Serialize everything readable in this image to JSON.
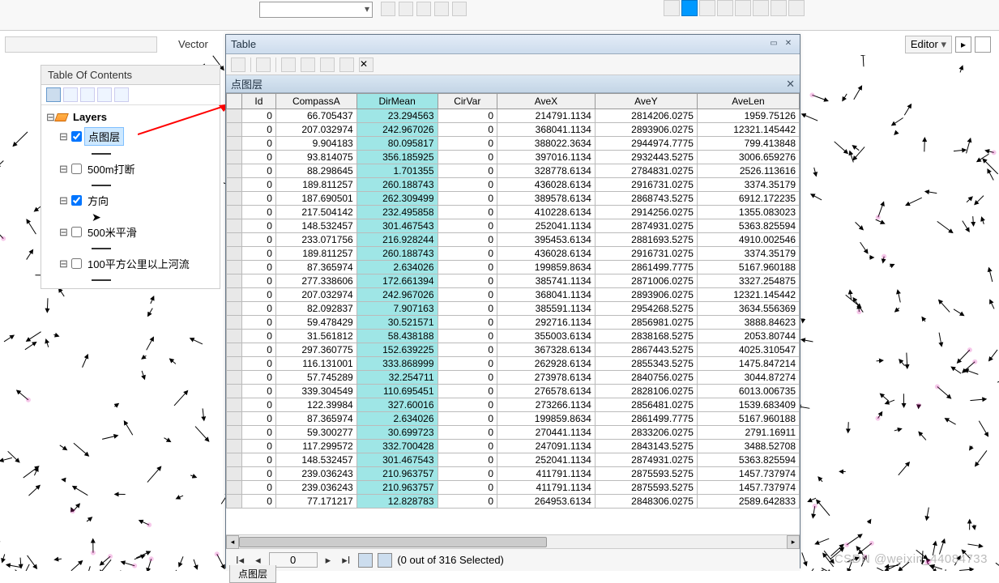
{
  "top": {
    "vector_label": "Vector",
    "editor_label": "Editor"
  },
  "toc": {
    "title": "Table Of Contents",
    "root": "Layers",
    "items": [
      {
        "label": "点图层",
        "checked": true,
        "selected": true,
        "symbol": "dash"
      },
      {
        "label": "500m打断",
        "checked": false,
        "selected": false,
        "symbol": "dash"
      },
      {
        "label": "方向",
        "checked": true,
        "selected": false,
        "symbol": "arrow"
      },
      {
        "label": "500米平滑",
        "checked": false,
        "selected": false,
        "symbol": "dash"
      },
      {
        "label": "100平方公里以上河流",
        "checked": false,
        "selected": false,
        "symbol": "dash"
      }
    ]
  },
  "table": {
    "window_title": "Table",
    "sub_title": "点图层",
    "columns": [
      "Id",
      "CompassA",
      "DirMean",
      "CirVar",
      "AveX",
      "AveY",
      "AveLen"
    ],
    "highlight_col_index": 2,
    "rows": [
      [
        "0",
        "66.705437",
        "23.294563",
        "0",
        "214791.1134",
        "2814206.0275",
        "1959.75126"
      ],
      [
        "0",
        "207.032974",
        "242.967026",
        "0",
        "368041.1134",
        "2893906.0275",
        "12321.145442"
      ],
      [
        "0",
        "9.904183",
        "80.095817",
        "0",
        "388022.3634",
        "2944974.7775",
        "799.413848"
      ],
      [
        "0",
        "93.814075",
        "356.185925",
        "0",
        "397016.1134",
        "2932443.5275",
        "3006.659276"
      ],
      [
        "0",
        "88.298645",
        "1.701355",
        "0",
        "328778.6134",
        "2784831.0275",
        "2526.113616"
      ],
      [
        "0",
        "189.811257",
        "260.188743",
        "0",
        "436028.6134",
        "2916731.0275",
        "3374.35179"
      ],
      [
        "0",
        "187.690501",
        "262.309499",
        "0",
        "389578.6134",
        "2868743.5275",
        "6912.172235"
      ],
      [
        "0",
        "217.504142",
        "232.495858",
        "0",
        "410228.6134",
        "2914256.0275",
        "1355.083023"
      ],
      [
        "0",
        "148.532457",
        "301.467543",
        "0",
        "252041.1134",
        "2874931.0275",
        "5363.825594"
      ],
      [
        "0",
        "233.071756",
        "216.928244",
        "0",
        "395453.6134",
        "2881693.5275",
        "4910.002546"
      ],
      [
        "0",
        "189.811257",
        "260.188743",
        "0",
        "436028.6134",
        "2916731.0275",
        "3374.35179"
      ],
      [
        "0",
        "87.365974",
        "2.634026",
        "0",
        "199859.8634",
        "2861499.7775",
        "5167.960188"
      ],
      [
        "0",
        "277.338606",
        "172.661394",
        "0",
        "385741.1134",
        "2871006.0275",
        "3327.254875"
      ],
      [
        "0",
        "207.032974",
        "242.967026",
        "0",
        "368041.1134",
        "2893906.0275",
        "12321.145442"
      ],
      [
        "0",
        "82.092837",
        "7.907163",
        "0",
        "385591.1134",
        "2954268.5275",
        "3634.556369"
      ],
      [
        "0",
        "59.478429",
        "30.521571",
        "0",
        "292716.1134",
        "2856981.0275",
        "3888.84623"
      ],
      [
        "0",
        "31.561812",
        "58.438188",
        "0",
        "355003.6134",
        "2838168.5275",
        "2053.80744"
      ],
      [
        "0",
        "297.360775",
        "152.639225",
        "0",
        "367328.6134",
        "2867443.5275",
        "4025.310547"
      ],
      [
        "0",
        "116.131001",
        "333.868999",
        "0",
        "262928.6134",
        "2855343.5275",
        "1475.847214"
      ],
      [
        "0",
        "57.745289",
        "32.254711",
        "0",
        "273978.6134",
        "2840756.0275",
        "3044.87274"
      ],
      [
        "0",
        "339.304549",
        "110.695451",
        "0",
        "276578.6134",
        "2828106.0275",
        "6013.006735"
      ],
      [
        "0",
        "122.39984",
        "327.60016",
        "0",
        "273266.1134",
        "2856481.0275",
        "1539.683409"
      ],
      [
        "0",
        "87.365974",
        "2.634026",
        "0",
        "199859.8634",
        "2861499.7775",
        "5167.960188"
      ],
      [
        "0",
        "59.300277",
        "30.699723",
        "0",
        "270441.1134",
        "2833206.0275",
        "2791.16911"
      ],
      [
        "0",
        "117.299572",
        "332.700428",
        "0",
        "247091.1134",
        "2843143.5275",
        "3488.52708"
      ],
      [
        "0",
        "148.532457",
        "301.467543",
        "0",
        "252041.1134",
        "2874931.0275",
        "5363.825594"
      ],
      [
        "0",
        "239.036243",
        "210.963757",
        "0",
        "411791.1134",
        "2875593.5275",
        "1457.737974"
      ],
      [
        "0",
        "239.036243",
        "210.963757",
        "0",
        "411791.1134",
        "2875593.5275",
        "1457.737974"
      ],
      [
        "0",
        "77.171217",
        "12.828783",
        "0",
        "264953.6134",
        "2848306.0275",
        "2589.642833"
      ]
    ],
    "nav": {
      "current": "0",
      "status": "(0 out of 316 Selected)"
    },
    "tab_label": "点图层"
  },
  "watermark": "CSDN @weixin_44084733",
  "colors": {
    "sel_col_bg": "#9fe6e6",
    "toc_sel_bg": "#cde8ff",
    "titlebar_from": "#e3ecf7",
    "titlebar_to": "#cddced"
  }
}
